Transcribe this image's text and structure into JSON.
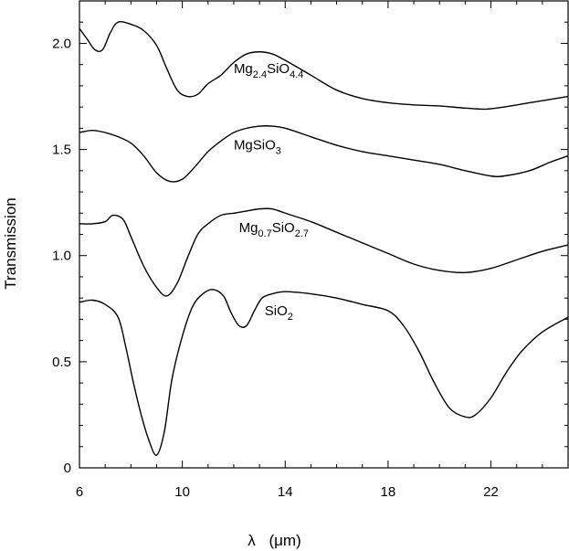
{
  "chart_data": {
    "type": "line",
    "title": "",
    "xlabel_symbol": "λ",
    "xlabel_unit": "(μm)",
    "ylabel": "Transmission",
    "xlim": [
      6,
      25
    ],
    "ylim": [
      0,
      2.2
    ],
    "xticks": [
      "6",
      "10",
      "14",
      "18",
      "22"
    ],
    "yticks": [
      "0",
      "0.5",
      "1.0",
      "1.5",
      "2.0"
    ],
    "grid": false,
    "series": [
      {
        "id": "mg24",
        "label_parts": [
          [
            "Mg",
            "base"
          ],
          [
            "2.4",
            "sub"
          ],
          [
            "SiO",
            "base"
          ],
          [
            "4.4",
            "sub"
          ]
        ],
        "x": [
          6.0,
          6.3,
          6.6,
          6.9,
          7.2,
          7.5,
          8.0,
          8.5,
          9.0,
          9.4,
          9.8,
          10.2,
          10.6,
          11.0,
          11.5,
          12.0,
          12.5,
          13.0,
          13.5,
          14.0,
          15.0,
          16.0,
          17.0,
          18.0,
          19.0,
          20.0,
          21.0,
          21.8,
          22.5,
          23.5,
          25.0
        ],
        "y": [
          2.07,
          2.02,
          1.97,
          1.97,
          2.05,
          2.1,
          2.09,
          2.06,
          1.99,
          1.88,
          1.78,
          1.75,
          1.76,
          1.81,
          1.85,
          1.91,
          1.95,
          1.96,
          1.95,
          1.92,
          1.85,
          1.78,
          1.74,
          1.72,
          1.71,
          1.705,
          1.695,
          1.69,
          1.7,
          1.72,
          1.75
        ]
      },
      {
        "id": "mgsio3",
        "label_parts": [
          [
            "MgSiO",
            "base"
          ],
          [
            "3",
            "sub"
          ]
        ],
        "x": [
          6.0,
          6.5,
          7.0,
          7.5,
          8.0,
          8.5,
          9.0,
          9.5,
          10.0,
          10.5,
          11.0,
          11.5,
          12.0,
          12.5,
          13.0,
          13.5,
          14.0,
          15.0,
          16.0,
          17.0,
          18.0,
          19.0,
          20.0,
          21.0,
          22.0,
          22.5,
          23.5,
          24.3,
          25.0
        ],
        "y": [
          1.58,
          1.59,
          1.58,
          1.56,
          1.53,
          1.47,
          1.39,
          1.35,
          1.36,
          1.42,
          1.49,
          1.54,
          1.58,
          1.6,
          1.61,
          1.61,
          1.6,
          1.56,
          1.52,
          1.49,
          1.47,
          1.45,
          1.43,
          1.4,
          1.375,
          1.375,
          1.4,
          1.44,
          1.47
        ]
      },
      {
        "id": "mg07",
        "label_parts": [
          [
            "Mg",
            "base"
          ],
          [
            "0.7",
            "sub"
          ],
          [
            "SiO",
            "base"
          ],
          [
            "2.7",
            "sub"
          ]
        ],
        "x": [
          6.0,
          6.5,
          7.0,
          7.3,
          7.7,
          8.0,
          8.5,
          9.0,
          9.4,
          9.8,
          10.2,
          10.6,
          11.0,
          11.5,
          12.0,
          12.5,
          13.0,
          13.5,
          14.0,
          15.0,
          16.0,
          17.0,
          18.0,
          19.0,
          20.0,
          21.0,
          22.0,
          23.0,
          24.0,
          25.0
        ],
        "y": [
          1.15,
          1.15,
          1.16,
          1.19,
          1.17,
          1.09,
          0.95,
          0.85,
          0.81,
          0.87,
          0.99,
          1.1,
          1.15,
          1.19,
          1.2,
          1.21,
          1.22,
          1.22,
          1.2,
          1.16,
          1.11,
          1.06,
          1.01,
          0.96,
          0.93,
          0.92,
          0.94,
          0.98,
          1.02,
          1.05
        ]
      },
      {
        "id": "sio2",
        "label_parts": [
          [
            "SiO",
            "base"
          ],
          [
            "2",
            "sub"
          ]
        ],
        "x": [
          6.0,
          6.5,
          7.0,
          7.5,
          7.8,
          8.1,
          8.4,
          8.7,
          9.0,
          9.3,
          9.6,
          10.0,
          10.4,
          10.8,
          11.2,
          11.6,
          11.9,
          12.2,
          12.5,
          12.8,
          13.1,
          13.5,
          14.0,
          15.0,
          16.0,
          17.0,
          18.0,
          18.6,
          19.2,
          19.8,
          20.4,
          21.0,
          21.4,
          22.0,
          22.6,
          23.2,
          24.0,
          25.0
        ],
        "y": [
          0.78,
          0.79,
          0.77,
          0.71,
          0.57,
          0.4,
          0.25,
          0.13,
          0.06,
          0.17,
          0.42,
          0.62,
          0.76,
          0.82,
          0.84,
          0.81,
          0.73,
          0.67,
          0.67,
          0.74,
          0.8,
          0.82,
          0.83,
          0.82,
          0.8,
          0.77,
          0.74,
          0.67,
          0.55,
          0.4,
          0.28,
          0.24,
          0.25,
          0.33,
          0.45,
          0.55,
          0.64,
          0.71
        ]
      }
    ]
  }
}
